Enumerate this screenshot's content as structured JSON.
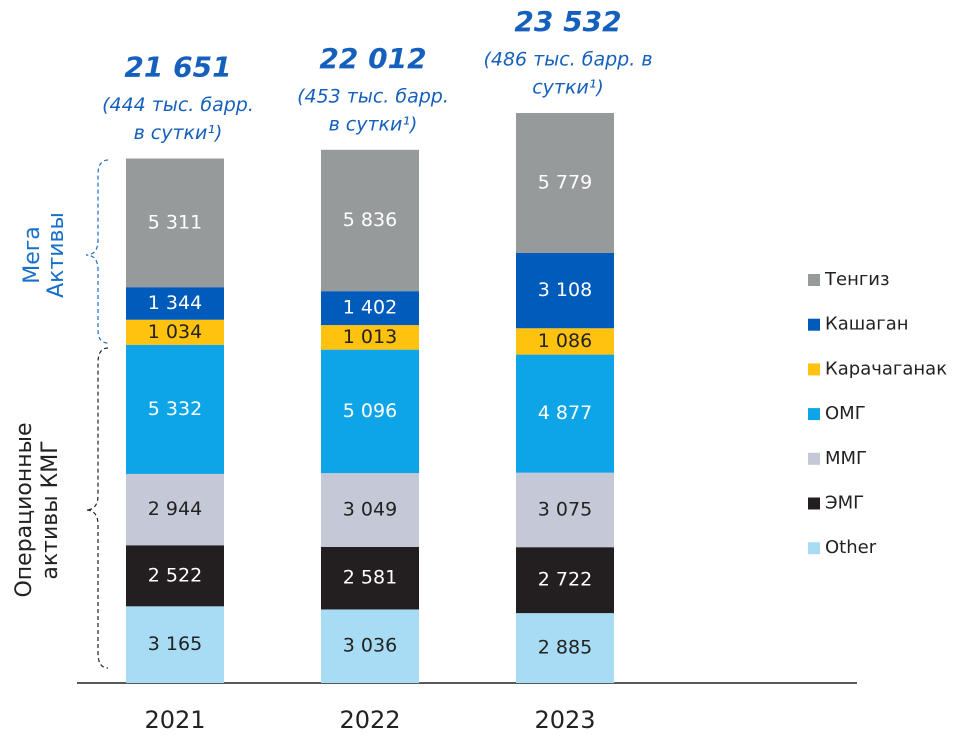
{
  "chart_data": {
    "type": "stacked_bar",
    "categories": [
      "2021",
      "2022",
      "2023"
    ],
    "series": [
      {
        "name": "Other",
        "color": "#a8dcf5",
        "values": [
          3165,
          3036,
          2885
        ],
        "value_labels": [
          "3 165",
          "3 036",
          "2 885"
        ]
      },
      {
        "name": "ЭМГ",
        "color": "#231f20",
        "values": [
          2522,
          2581,
          2722
        ],
        "value_labels": [
          "2 522",
          "2 581",
          "2 722"
        ]
      },
      {
        "name": "ММГ",
        "color": "#c5c8d6",
        "values": [
          2944,
          3049,
          3075
        ],
        "value_labels": [
          "2 944",
          "3 049",
          "3 075"
        ]
      },
      {
        "name": "ОМГ",
        "color": "#0ea5e8",
        "values": [
          5332,
          5096,
          4877
        ],
        "value_labels": [
          "5 332",
          "5 096",
          "4 877"
        ]
      },
      {
        "name": "Карачаганак",
        "color": "#ffc20e",
        "values": [
          1034,
          1013,
          1086
        ],
        "value_labels": [
          "1 034",
          "1 013",
          "1 086"
        ]
      },
      {
        "name": "Кашаган",
        "color": "#005bbb",
        "values": [
          1344,
          1402,
          3108
        ],
        "value_labels": [
          "1 344",
          "1 402",
          "3 108"
        ]
      },
      {
        "name": "Тенгиз",
        "color": "#969a9b",
        "values": [
          5311,
          5836,
          5779
        ],
        "value_labels": [
          "5 311",
          "5 836",
          "5 779"
        ]
      }
    ],
    "totals": [
      {
        "label": "21 651",
        "note": [
          "(444 тыс. барр.",
          "в сутки¹)"
        ]
      },
      {
        "label": "22 012",
        "note": [
          "(453 тыс. барр.",
          "в сутки¹)"
        ]
      },
      {
        "label": "23 532",
        "note": [
          "(486 тыс. барр. в",
          "сутки¹)"
        ]
      }
    ],
    "groups": [
      {
        "lines": [
          "Мега",
          "Активы"
        ]
      },
      {
        "lines": [
          "Операционные",
          "активы КМГ"
        ]
      }
    ]
  }
}
